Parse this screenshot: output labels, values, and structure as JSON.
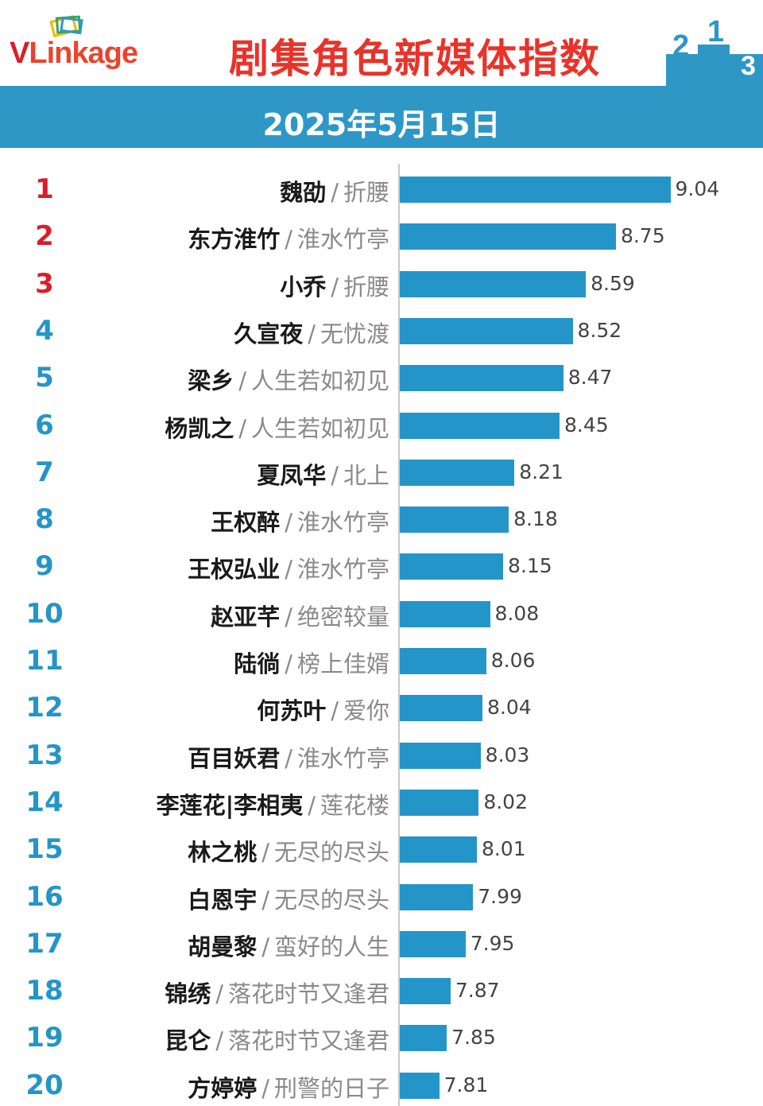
{
  "header": {
    "logo_text": "VLinkage",
    "title": "剧集角色新媒体指数",
    "date": "2025年5月15日"
  },
  "colors": {
    "bar": "#2495c8",
    "band": "#2f97c6",
    "title": "#e8332b",
    "rank_top3": "#d81e2a",
    "rank_rest": "#2495c8"
  },
  "chart_data": {
    "type": "bar",
    "orientation": "horizontal",
    "title": "剧集角色新媒体指数",
    "subtitle": "2025年5月15日",
    "xlim": [
      7.6,
      9.3
    ],
    "grid": false,
    "rows": [
      {
        "rank": "1",
        "name": "魏劭",
        "sep": "/",
        "drama": "折腰",
        "value": 9.04,
        "label": "9.04"
      },
      {
        "rank": "2",
        "name": "东方淮竹",
        "sep": "/",
        "drama": "淮水竹亭",
        "value": 8.75,
        "label": "8.75"
      },
      {
        "rank": "3",
        "name": "小乔",
        "sep": "/",
        "drama": "折腰",
        "value": 8.59,
        "label": "8.59"
      },
      {
        "rank": "4",
        "name": "久宣夜",
        "sep": "/",
        "drama": "无忧渡",
        "value": 8.52,
        "label": "8.52"
      },
      {
        "rank": "5",
        "name": "梁乡",
        "sep": "/",
        "drama": "人生若如初见",
        "value": 8.47,
        "label": "8.47"
      },
      {
        "rank": "6",
        "name": "杨凯之",
        "sep": "/",
        "drama": "人生若如初见",
        "value": 8.45,
        "label": "8.45"
      },
      {
        "rank": "7",
        "name": "夏凤华",
        "sep": "/",
        "drama": "北上",
        "value": 8.21,
        "label": "8.21"
      },
      {
        "rank": "8",
        "name": "王权醉",
        "sep": "/",
        "drama": "淮水竹亭",
        "value": 8.18,
        "label": "8.18"
      },
      {
        "rank": "9",
        "name": "王权弘业",
        "sep": "/",
        "drama": "淮水竹亭",
        "value": 8.15,
        "label": "8.15"
      },
      {
        "rank": "10",
        "name": "赵亚芊",
        "sep": "/",
        "drama": "绝密较量",
        "value": 8.08,
        "label": "8.08"
      },
      {
        "rank": "11",
        "name": "陆徜",
        "sep": "/",
        "drama": "榜上佳婿",
        "value": 8.06,
        "label": "8.06"
      },
      {
        "rank": "12",
        "name": "何苏叶",
        "sep": "/",
        "drama": "爱你",
        "value": 8.04,
        "label": "8.04"
      },
      {
        "rank": "13",
        "name": "百目妖君",
        "sep": "/",
        "drama": "淮水竹亭",
        "value": 8.03,
        "label": "8.03"
      },
      {
        "rank": "14",
        "name": "李莲花|李相夷",
        "sep": "/",
        "drama": "莲花楼",
        "value": 8.02,
        "label": "8.02"
      },
      {
        "rank": "15",
        "name": "林之桃",
        "sep": "/",
        "drama": "无尽的尽头",
        "value": 8.01,
        "label": "8.01"
      },
      {
        "rank": "16",
        "name": "白恩宇",
        "sep": "/",
        "drama": "无尽的尽头",
        "value": 7.99,
        "label": "7.99"
      },
      {
        "rank": "17",
        "name": "胡曼黎",
        "sep": "/",
        "drama": "蛮好的人生",
        "value": 7.95,
        "label": "7.95"
      },
      {
        "rank": "18",
        "name": "锦绣",
        "sep": "/",
        "drama": "落花时节又逢君",
        "value": 7.87,
        "label": "7.87"
      },
      {
        "rank": "19",
        "name": "昆仑",
        "sep": "/",
        "drama": "落花时节又逢君",
        "value": 7.85,
        "label": "7.85"
      },
      {
        "rank": "20",
        "name": "方婷婷",
        "sep": "/",
        "drama": "刑警的日子",
        "value": 7.81,
        "label": "7.81"
      }
    ]
  }
}
